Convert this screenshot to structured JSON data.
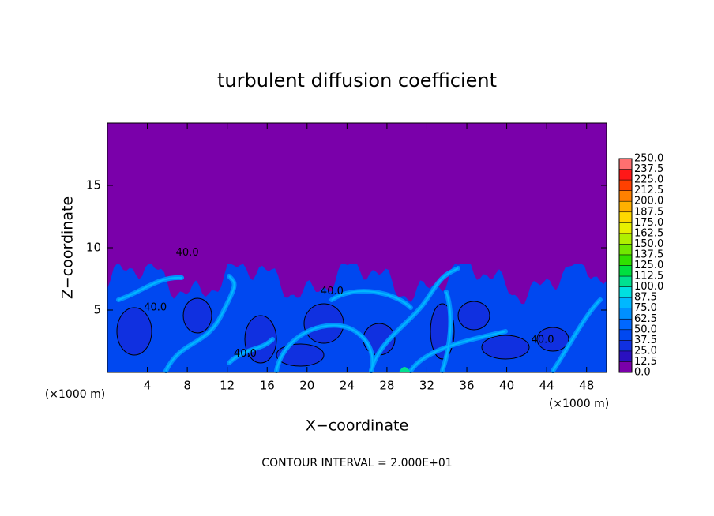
{
  "chart_data": {
    "type": "contour",
    "title": "turbulent diffusion coefficient",
    "x_label": "X−coordinate",
    "y_label": "Z−coordinate",
    "x_unit": "(×1000 m)",
    "y_unit": "(×1000 m)",
    "footer": "CONTOUR INTERVAL = 2.000E+01",
    "xlim": [
      0,
      50
    ],
    "xticks": [
      4,
      8,
      12,
      16,
      20,
      24,
      28,
      32,
      36,
      40,
      44,
      48
    ],
    "ylim": [
      0,
      20
    ],
    "yticks": [
      5,
      10,
      15
    ],
    "colorbar": {
      "levels": [
        {
          "value": 0,
          "label": "0.0"
        },
        {
          "value": 12.5,
          "label": "12.5"
        },
        {
          "value": 25,
          "label": "25.0"
        },
        {
          "value": 37.5,
          "label": "37.5"
        },
        {
          "value": 50,
          "label": "50.0"
        },
        {
          "value": 62.5,
          "label": "62.5"
        },
        {
          "value": 75,
          "label": "75.0"
        },
        {
          "value": 87.5,
          "label": "87.5"
        },
        {
          "value": 100,
          "label": "100.0"
        },
        {
          "value": 112.5,
          "label": "112.5"
        },
        {
          "value": 125,
          "label": "125.0"
        },
        {
          "value": 137.5,
          "label": "137.5"
        },
        {
          "value": 150,
          "label": "150.0"
        },
        {
          "value": 162.5,
          "label": "162.5"
        },
        {
          "value": 175,
          "label": "175.0"
        },
        {
          "value": 187.5,
          "label": "187.5"
        },
        {
          "value": 200,
          "label": "200.0"
        },
        {
          "value": 212.5,
          "label": "212.5"
        },
        {
          "value": 225,
          "label": "225.0"
        },
        {
          "value": 237.5,
          "label": "237.5"
        },
        {
          "value": 250,
          "label": "250.0"
        }
      ],
      "colors": [
        "#7a00aa",
        "#2a10c0",
        "#1030e0",
        "#0048f0",
        "#0068ff",
        "#0090ff",
        "#00b8ff",
        "#00e0e0",
        "#00e090",
        "#00e040",
        "#30e000",
        "#70e800",
        "#b0f000",
        "#e8f000",
        "#ffd800",
        "#ffb000",
        "#ff8000",
        "#ff4000",
        "#ff1818",
        "#ff7070"
      ]
    },
    "annotations": [
      {
        "text": "40.0",
        "x": 8,
        "y": 9.6
      },
      {
        "text": "40.0",
        "x": 4.8,
        "y": 5.2
      },
      {
        "text": "40.0",
        "x": 22.5,
        "y": 6.5
      },
      {
        "text": "40.0",
        "x": 13.8,
        "y": 1.5
      },
      {
        "text": "40.0",
        "x": 43.6,
        "y": 2.6
      }
    ]
  }
}
